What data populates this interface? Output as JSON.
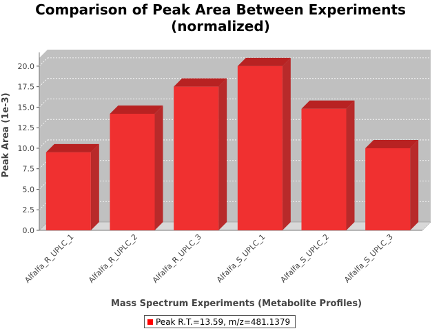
{
  "chart_data": {
    "type": "bar",
    "title": "Comparison of Peak Area Between Experiments",
    "subtitle": "(normalized)",
    "xlabel": "Mass Spectrum Experiments (Metabolite Profiles)",
    "ylabel": "Peak Area (1e-3)",
    "categories": [
      "Alfalfa_R_UPLC_1",
      "Alfalfa_R_UPLC_2",
      "Alfalfa_R_UPLC_3",
      "Alfalfa_S_UPLC_1",
      "Alfalfa_S_UPLC_2",
      "Alfalfa_S_UPLC_3"
    ],
    "series": [
      {
        "name": "Peak R.T.=13.59, m/z=481.1379",
        "values": [
          9.5,
          14.2,
          17.5,
          20.0,
          14.8,
          10.0
        ]
      }
    ],
    "ylim": [
      0,
      21
    ],
    "yticks": [
      "0.0",
      "2.5",
      "5.0",
      "7.5",
      "10.0",
      "12.5",
      "15.0",
      "17.5",
      "20.0"
    ],
    "grid": true,
    "legend_position": "bottom",
    "colors": {
      "bar_front": "#f03030",
      "bar_top": "#b82222",
      "bar_side": "#b82a2a",
      "plot_bg": "#c0c0c0",
      "plot_floor": "#d8d8d8"
    }
  }
}
